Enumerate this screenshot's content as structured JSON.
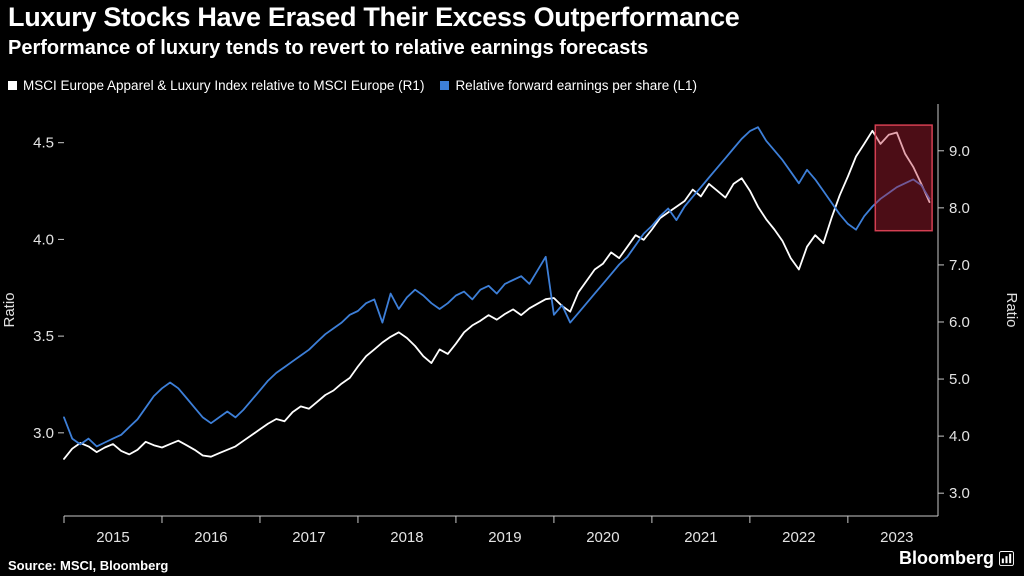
{
  "header": {
    "title": "Luxury Stocks Have Erased Their Excess Outperformance",
    "subtitle": "Performance of luxury tends to revert to relative earnings forecasts"
  },
  "legend": [
    {
      "label": "MSCI Europe Apparel & Luxury Index relative to MSCI Europe (R1)",
      "color": "#ffffff"
    },
    {
      "label": "Relative forward earnings per share (L1)",
      "color": "#3d7fd8"
    }
  ],
  "footer": {
    "source": "Source: MSCI, Bloomberg",
    "brand": "Bloomberg"
  },
  "chart_data": {
    "type": "line",
    "title": "Luxury Stocks Have Erased Their Excess Outperformance",
    "x_start": 2015.0,
    "x_step_years": 0.0833333,
    "x_axis": {
      "min": 2015.0,
      "max": 2023.92,
      "tick_years": [
        2015,
        2016,
        2017,
        2018,
        2019,
        2020,
        2021,
        2022,
        2023
      ]
    },
    "left_axis": {
      "label": "Ratio",
      "ticks": [
        3.0,
        3.5,
        4.0,
        4.5
      ],
      "min": 2.57,
      "max": 4.7
    },
    "right_axis": {
      "label": "Ratio",
      "ticks": [
        3.0,
        4.0,
        5.0,
        6.0,
        7.0,
        8.0,
        9.0
      ],
      "min": 2.6,
      "max": 9.82
    },
    "colors": {
      "axis": "#c9c9c9",
      "tick_label": "#e3e3e3"
    },
    "series": [
      {
        "name": "MSCI Europe Apparel & Luxury Index relative to MSCI Europe (R1)",
        "axis": "right",
        "color": "#ffffff",
        "values": [
          3.6,
          3.78,
          3.88,
          3.82,
          3.72,
          3.8,
          3.86,
          3.74,
          3.68,
          3.76,
          3.9,
          3.84,
          3.8,
          3.86,
          3.92,
          3.84,
          3.76,
          3.66,
          3.64,
          3.7,
          3.76,
          3.82,
          3.92,
          4.02,
          4.12,
          4.22,
          4.3,
          4.26,
          4.42,
          4.52,
          4.48,
          4.6,
          4.72,
          4.8,
          4.92,
          5.02,
          5.22,
          5.4,
          5.52,
          5.64,
          5.74,
          5.82,
          5.72,
          5.58,
          5.4,
          5.28,
          5.52,
          5.44,
          5.62,
          5.82,
          5.94,
          6.02,
          6.12,
          6.04,
          6.14,
          6.22,
          6.12,
          6.24,
          6.32,
          6.4,
          6.42,
          6.28,
          6.18,
          6.52,
          6.72,
          6.92,
          7.02,
          7.22,
          7.12,
          7.32,
          7.52,
          7.44,
          7.62,
          7.82,
          7.92,
          8.02,
          8.12,
          8.32,
          8.2,
          8.42,
          8.3,
          8.18,
          8.42,
          8.52,
          8.3,
          8.02,
          7.8,
          7.62,
          7.42,
          7.12,
          6.92,
          7.32,
          7.52,
          7.38,
          7.82,
          8.22,
          8.55,
          8.9,
          9.12,
          9.35,
          9.12,
          9.28,
          9.32,
          8.95,
          8.72,
          8.42,
          8.1
        ]
      },
      {
        "name": "Relative forward earnings per share (L1)",
        "axis": "left",
        "color": "#3d7fd8",
        "values": [
          3.08,
          2.97,
          2.94,
          2.97,
          2.93,
          2.95,
          2.97,
          2.99,
          3.03,
          3.07,
          3.13,
          3.19,
          3.23,
          3.26,
          3.23,
          3.18,
          3.13,
          3.08,
          3.05,
          3.08,
          3.11,
          3.08,
          3.12,
          3.17,
          3.22,
          3.27,
          3.31,
          3.34,
          3.37,
          3.4,
          3.43,
          3.47,
          3.51,
          3.54,
          3.57,
          3.61,
          3.63,
          3.67,
          3.69,
          3.57,
          3.72,
          3.64,
          3.7,
          3.74,
          3.71,
          3.67,
          3.64,
          3.67,
          3.71,
          3.73,
          3.69,
          3.74,
          3.76,
          3.72,
          3.77,
          3.79,
          3.81,
          3.77,
          3.84,
          3.91,
          3.61,
          3.66,
          3.57,
          3.62,
          3.67,
          3.72,
          3.77,
          3.82,
          3.87,
          3.91,
          3.97,
          4.03,
          4.07,
          4.12,
          4.16,
          4.1,
          4.17,
          4.22,
          4.27,
          4.32,
          4.37,
          4.42,
          4.47,
          4.52,
          4.56,
          4.58,
          4.51,
          4.46,
          4.41,
          4.35,
          4.29,
          4.36,
          4.31,
          4.25,
          4.19,
          4.13,
          4.08,
          4.05,
          4.12,
          4.17,
          4.21,
          4.24,
          4.27,
          4.29,
          4.31,
          4.28,
          4.21
        ]
      }
    ],
    "highlight_box": {
      "x0": 2023.28,
      "x1": 2023.86,
      "y0_right": 7.6,
      "y1_right": 9.45,
      "fill": "rgba(190,32,54,0.40)",
      "stroke": "#d43f52"
    }
  }
}
